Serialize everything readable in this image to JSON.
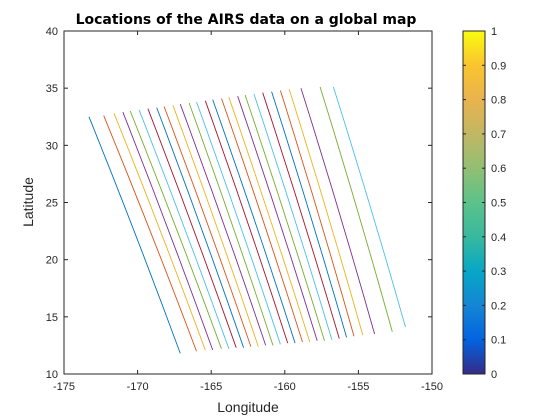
{
  "chart_data": {
    "type": "line",
    "title": "Locations of the AIRS data on a global map",
    "xlabel": "Longitude",
    "ylabel": "Latitude",
    "xlim": [
      -175,
      -150
    ],
    "ylim": [
      10,
      40
    ],
    "xticks": [
      "-175",
      "-170",
      "-165",
      "-160",
      "-155",
      "-150"
    ],
    "yticks": [
      "10",
      "15",
      "20",
      "25",
      "30",
      "35",
      "40"
    ],
    "grid": false,
    "colorbar": {
      "range": [
        0,
        1
      ],
      "ticks": [
        "0",
        "0.1",
        "0.2",
        "0.3",
        "0.4",
        "0.5",
        "0.6",
        "0.7",
        "0.8",
        "0.9",
        "1"
      ],
      "colormap": "parula"
    },
    "series_colors": [
      "#0072BD",
      "#D95319",
      "#EDB120",
      "#7E2F8E",
      "#77AC30",
      "#4DBEEE",
      "#A2142F"
    ],
    "series": [
      {
        "x": [
          -173.3,
          -167.1
        ],
        "y": [
          32.5,
          11.8
        ]
      },
      {
        "x": [
          -172.3,
          -166.0
        ],
        "y": [
          32.6,
          12.0
        ]
      },
      {
        "x": [
          -171.6,
          -165.4
        ],
        "y": [
          32.8,
          12.1
        ]
      },
      {
        "x": [
          -171.0,
          -164.9
        ],
        "y": [
          32.9,
          12.1
        ]
      },
      {
        "x": [
          -170.5,
          -164.3
        ],
        "y": [
          33.0,
          12.2
        ]
      },
      {
        "x": [
          -169.9,
          -163.8
        ],
        "y": [
          33.1,
          12.2
        ]
      },
      {
        "x": [
          -169.3,
          -163.3
        ],
        "y": [
          33.2,
          12.3
        ]
      },
      {
        "x": [
          -168.7,
          -162.8
        ],
        "y": [
          33.3,
          12.3
        ]
      },
      {
        "x": [
          -168.2,
          -162.3
        ],
        "y": [
          33.4,
          12.4
        ]
      },
      {
        "x": [
          -167.6,
          -161.8
        ],
        "y": [
          33.5,
          12.4
        ]
      },
      {
        "x": [
          -167.1,
          -161.3
        ],
        "y": [
          33.6,
          12.5
        ]
      },
      {
        "x": [
          -166.5,
          -160.8
        ],
        "y": [
          33.7,
          12.5
        ]
      },
      {
        "x": [
          -166.0,
          -160.3
        ],
        "y": [
          33.8,
          12.6
        ]
      },
      {
        "x": [
          -165.4,
          -159.8
        ],
        "y": [
          33.9,
          12.7
        ]
      },
      {
        "x": [
          -164.9,
          -159.3
        ],
        "y": [
          34.0,
          12.7
        ]
      },
      {
        "x": [
          -164.3,
          -158.8
        ],
        "y": [
          34.1,
          12.8
        ]
      },
      {
        "x": [
          -163.8,
          -158.3
        ],
        "y": [
          34.2,
          12.8
        ]
      },
      {
        "x": [
          -163.2,
          -157.8
        ],
        "y": [
          34.3,
          12.9
        ]
      },
      {
        "x": [
          -162.7,
          -157.3
        ],
        "y": [
          34.4,
          12.9
        ]
      },
      {
        "x": [
          -162.1,
          -156.8
        ],
        "y": [
          34.5,
          13.0
        ]
      },
      {
        "x": [
          -161.5,
          -156.3
        ],
        "y": [
          34.6,
          13.1
        ]
      },
      {
        "x": [
          -160.9,
          -155.8
        ],
        "y": [
          34.7,
          13.2
        ]
      },
      {
        "x": [
          -160.3,
          -155.3
        ],
        "y": [
          34.8,
          13.3
        ]
      },
      {
        "x": [
          -159.7,
          -154.7
        ],
        "y": [
          34.9,
          13.4
        ]
      },
      {
        "x": [
          -158.9,
          -153.9
        ],
        "y": [
          35.0,
          13.5
        ]
      },
      {
        "x": [
          -157.6,
          -152.7
        ],
        "y": [
          35.1,
          13.7
        ]
      },
      {
        "x": [
          -156.7,
          -151.8
        ],
        "y": [
          35.1,
          14.1
        ]
      }
    ]
  }
}
